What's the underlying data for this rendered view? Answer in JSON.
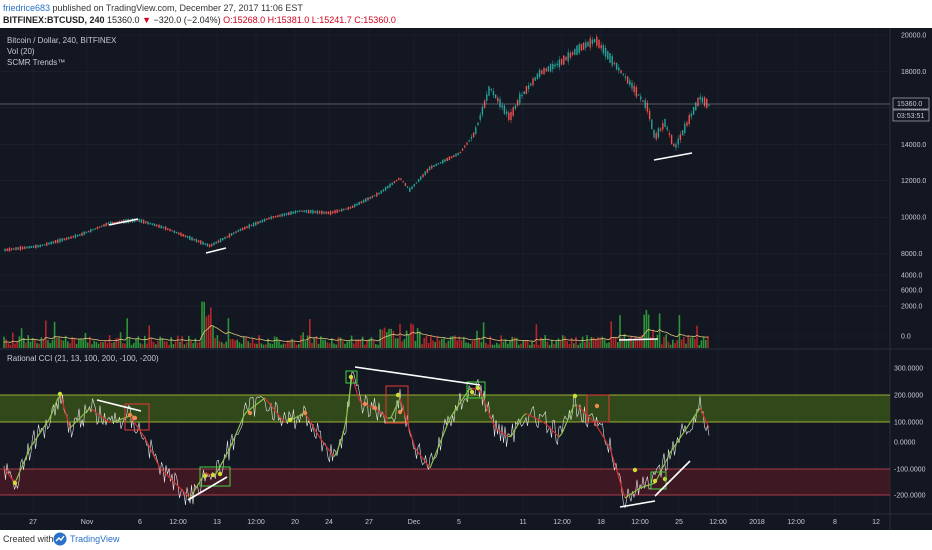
{
  "header": {
    "username": "friedrice683",
    "published_text": "published on TradingView.com, December 27, 2017 11:06 EST",
    "symbol": "BITFINEX:BTCUSD, 240",
    "last_price": "15360.0",
    "change_arrow": "▼",
    "change": "−320.0 (−2.04%)",
    "open": "O:15268.0",
    "high": "H:15381.0",
    "low": "L:15241.7",
    "close": "C:15360.0"
  },
  "legend": {
    "series": "Bitcoin / Dollar, 240, BITFINEX",
    "volume": "Vol (20)",
    "indicator": "SCMR Trends™",
    "cci": "Rational CCI (21, 13, 100, 200, -100, -200)"
  },
  "price_axis": {
    "ticks": [
      "20000.0",
      "18000.0",
      "16000.0",
      "14000.0",
      "12000.0",
      "10000.0",
      "8000.0",
      "6000.0",
      "4000.0",
      "2000.0",
      "0.0"
    ],
    "current_price_label": "15360.0",
    "countdown_label": "03:53:51"
  },
  "cci_axis": {
    "ticks": [
      "300.0000",
      "200.0000",
      "100.0000",
      "0.0000",
      "-100.0000",
      "-200.0000"
    ]
  },
  "time_axis": {
    "ticks": [
      "27",
      "Nov",
      "6",
      "12:00",
      "13",
      "12:00",
      "20",
      "24",
      "27",
      "Dec",
      "5",
      "11",
      "12:00",
      "18",
      "12:00",
      "25",
      "12:00",
      "2018",
      "12:00",
      "8",
      "12"
    ]
  },
  "colors": {
    "background": "#131722",
    "up_candle": "#26a69a",
    "up_bar": "#2fa33a",
    "down_candle": "#ef5350",
    "down_bar": "#c62828",
    "overbought_band": "#3c5a1a",
    "oversold_band": "#4a1a24",
    "trend_lines": "#ffffff",
    "box_green": "#43d33f",
    "box_red": "#e53935"
  },
  "footer": {
    "created_with": "Created with",
    "brand": "TradingView"
  }
}
